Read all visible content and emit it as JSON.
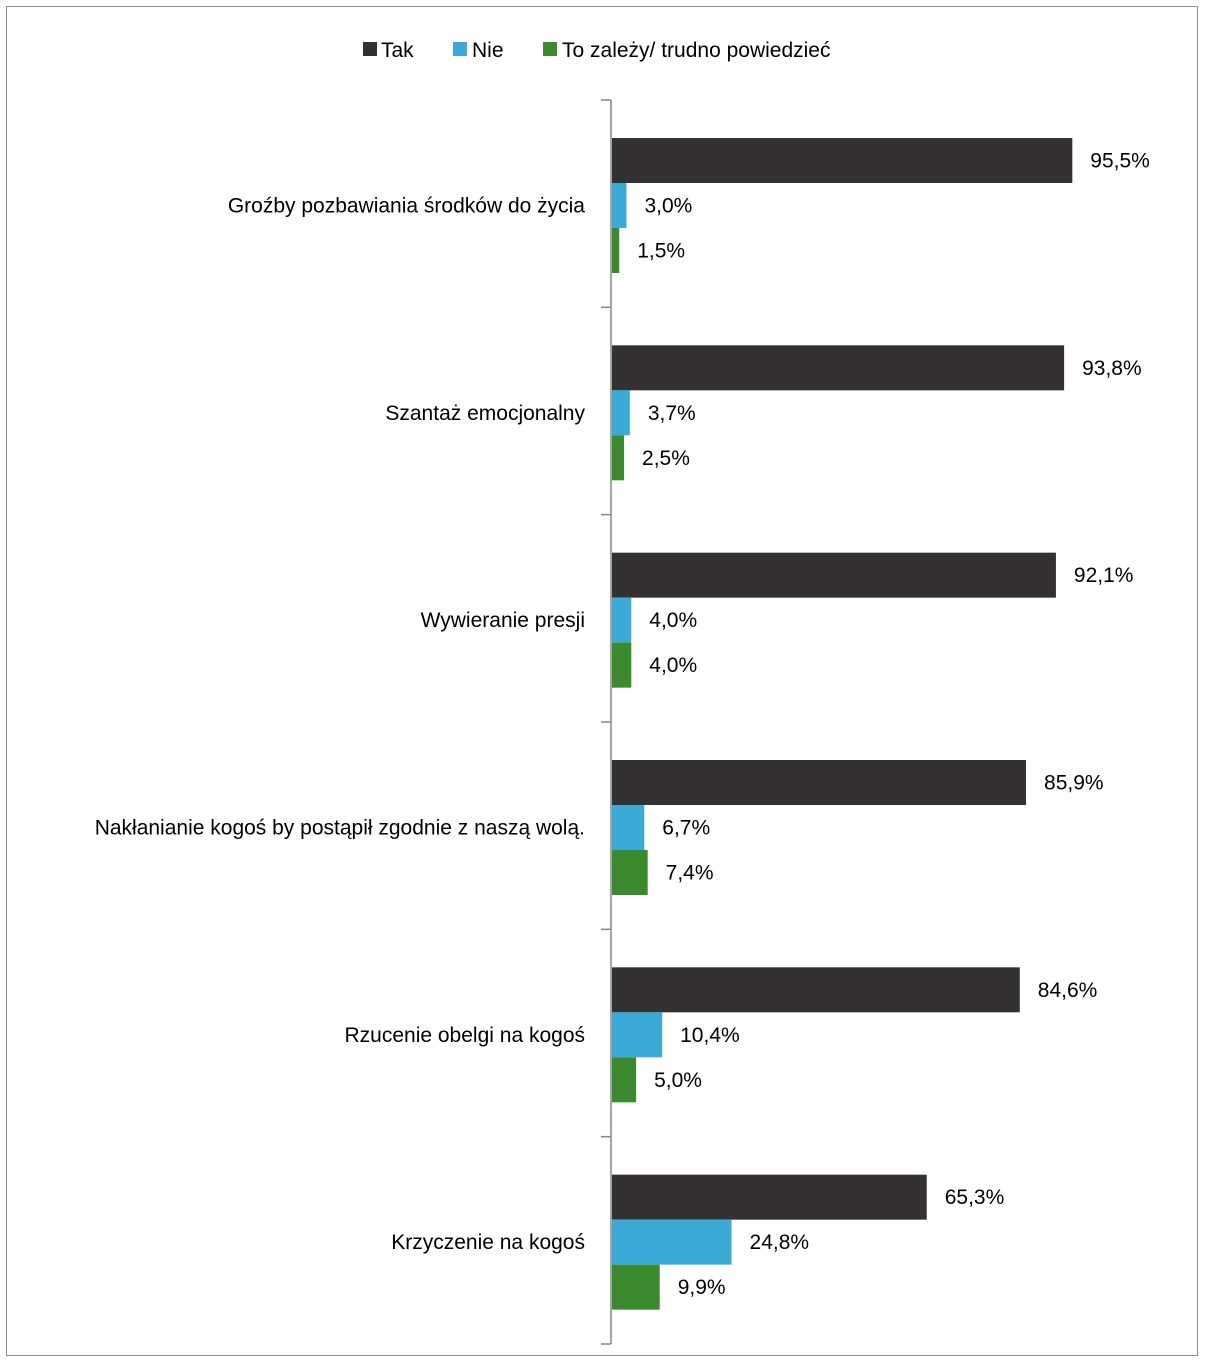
{
  "chart_data": {
    "type": "bar",
    "orientation": "horizontal",
    "categories": [
      "Groźby pozbawiania środków do życia",
      "Szantaż emocjonalny",
      "Wywieranie presji",
      "Nakłanianie kogoś by postąpił zgodnie z naszą wolą.",
      "Rzucenie obelgi na kogoś",
      "Krzyczenie na kogoś"
    ],
    "series": [
      {
        "name": "Tak",
        "color": "#333132",
        "values": [
          95.5,
          93.8,
          92.1,
          85.9,
          84.6,
          65.3
        ],
        "labels": [
          "95,5%",
          "93,8%",
          "92,1%",
          "85,9%",
          "84,6%",
          "65,3%"
        ]
      },
      {
        "name": "Nie",
        "color": "#3caad7",
        "values": [
          3.0,
          3.7,
          4.0,
          6.7,
          10.4,
          24.8
        ],
        "labels": [
          "3,0%",
          "3,7%",
          "4,0%",
          "6,7%",
          "10,4%",
          "24,8%"
        ]
      },
      {
        "name": "To zależy/ trudno powiedzieć",
        "color": "#3b8a2e",
        "values": [
          1.5,
          2.5,
          4.0,
          7.4,
          5.0,
          9.9
        ],
        "labels": [
          "1,5%",
          "2,5%",
          "4,0%",
          "7,4%",
          "5,0%",
          "9,9%"
        ]
      }
    ],
    "legend_position": "top",
    "axis_color": "#868686",
    "gridlines": false,
    "xlim": [
      0,
      100
    ]
  }
}
